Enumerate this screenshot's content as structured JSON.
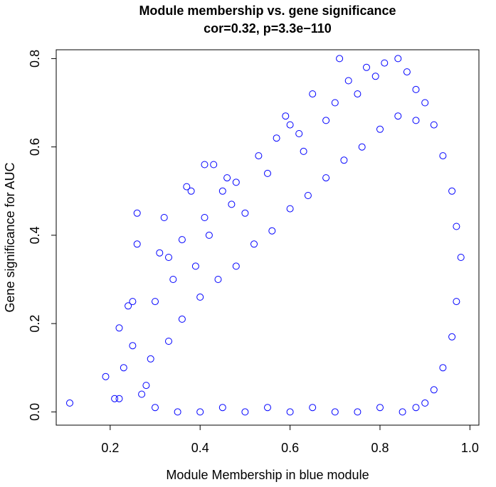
{
  "chart_data": {
    "type": "scatter",
    "title": "Module membership vs. gene significance",
    "subtitle": "cor=0.32, p=3.3e−110",
    "xlabel": "Module Membership in blue module",
    "ylabel": "Gene significance for  AUC",
    "xlim": [
      0.08,
      1.02
    ],
    "ylim": [
      -0.03,
      0.82
    ],
    "x_ticks": [
      0.2,
      0.4,
      0.6,
      0.8,
      1.0
    ],
    "x_tick_labels": [
      "0.2",
      "0.4",
      "0.6",
      "0.8",
      "1.0"
    ],
    "y_ticks": [
      0.0,
      0.2,
      0.4,
      0.6,
      0.8
    ],
    "y_tick_labels": [
      "0.0",
      "0.2",
      "0.4",
      "0.6",
      "0.8"
    ],
    "marker": "open-circle",
    "color": "#0000ff",
    "grid": false,
    "points": [
      [
        0.11,
        0.02
      ],
      [
        0.19,
        0.08
      ],
      [
        0.21,
        0.03
      ],
      [
        0.22,
        0.19
      ],
      [
        0.22,
        0.03
      ],
      [
        0.23,
        0.1
      ],
      [
        0.24,
        0.24
      ],
      [
        0.25,
        0.25
      ],
      [
        0.25,
        0.15
      ],
      [
        0.26,
        0.45
      ],
      [
        0.26,
        0.38
      ],
      [
        0.28,
        0.06
      ],
      [
        0.3,
        0.25
      ],
      [
        0.31,
        0.36
      ],
      [
        0.32,
        0.44
      ],
      [
        0.33,
        0.35
      ],
      [
        0.34,
        0.3
      ],
      [
        0.36,
        0.39
      ],
      [
        0.37,
        0.51
      ],
      [
        0.38,
        0.5
      ],
      [
        0.39,
        0.33
      ],
      [
        0.41,
        0.56
      ],
      [
        0.41,
        0.44
      ],
      [
        0.42,
        0.4
      ],
      [
        0.43,
        0.56
      ],
      [
        0.45,
        0.5
      ],
      [
        0.46,
        0.53
      ],
      [
        0.47,
        0.47
      ],
      [
        0.48,
        0.52
      ],
      [
        0.5,
        0.45
      ],
      [
        0.53,
        0.58
      ],
      [
        0.55,
        0.54
      ],
      [
        0.57,
        0.62
      ],
      [
        0.59,
        0.67
      ],
      [
        0.6,
        0.65
      ],
      [
        0.62,
        0.63
      ],
      [
        0.63,
        0.59
      ],
      [
        0.65,
        0.72
      ],
      [
        0.68,
        0.66
      ],
      [
        0.7,
        0.7
      ],
      [
        0.71,
        0.8
      ],
      [
        0.73,
        0.75
      ],
      [
        0.75,
        0.72
      ],
      [
        0.77,
        0.78
      ],
      [
        0.79,
        0.76
      ],
      [
        0.81,
        0.79
      ],
      [
        0.84,
        0.8
      ],
      [
        0.86,
        0.77
      ],
      [
        0.88,
        0.73
      ],
      [
        0.9,
        0.7
      ],
      [
        0.92,
        0.65
      ],
      [
        0.94,
        0.58
      ],
      [
        0.96,
        0.5
      ],
      [
        0.97,
        0.42
      ],
      [
        0.98,
        0.35
      ],
      [
        0.97,
        0.25
      ],
      [
        0.96,
        0.17
      ],
      [
        0.94,
        0.1
      ],
      [
        0.92,
        0.05
      ],
      [
        0.9,
        0.02
      ],
      [
        0.88,
        0.01
      ],
      [
        0.85,
        0.0
      ],
      [
        0.8,
        0.01
      ],
      [
        0.75,
        0.0
      ],
      [
        0.7,
        0.0
      ],
      [
        0.65,
        0.01
      ],
      [
        0.6,
        0.0
      ],
      [
        0.55,
        0.01
      ],
      [
        0.5,
        0.0
      ],
      [
        0.45,
        0.01
      ],
      [
        0.4,
        0.0
      ],
      [
        0.35,
        0.0
      ],
      [
        0.3,
        0.01
      ],
      [
        0.27,
        0.04
      ],
      [
        0.29,
        0.12
      ],
      [
        0.33,
        0.16
      ],
      [
        0.36,
        0.21
      ],
      [
        0.4,
        0.26
      ],
      [
        0.44,
        0.3
      ],
      [
        0.48,
        0.33
      ],
      [
        0.52,
        0.38
      ],
      [
        0.56,
        0.41
      ],
      [
        0.6,
        0.46
      ],
      [
        0.64,
        0.49
      ],
      [
        0.68,
        0.53
      ],
      [
        0.72,
        0.57
      ],
      [
        0.76,
        0.6
      ],
      [
        0.8,
        0.64
      ],
      [
        0.84,
        0.67
      ],
      [
        0.88,
        0.66
      ]
    ]
  }
}
